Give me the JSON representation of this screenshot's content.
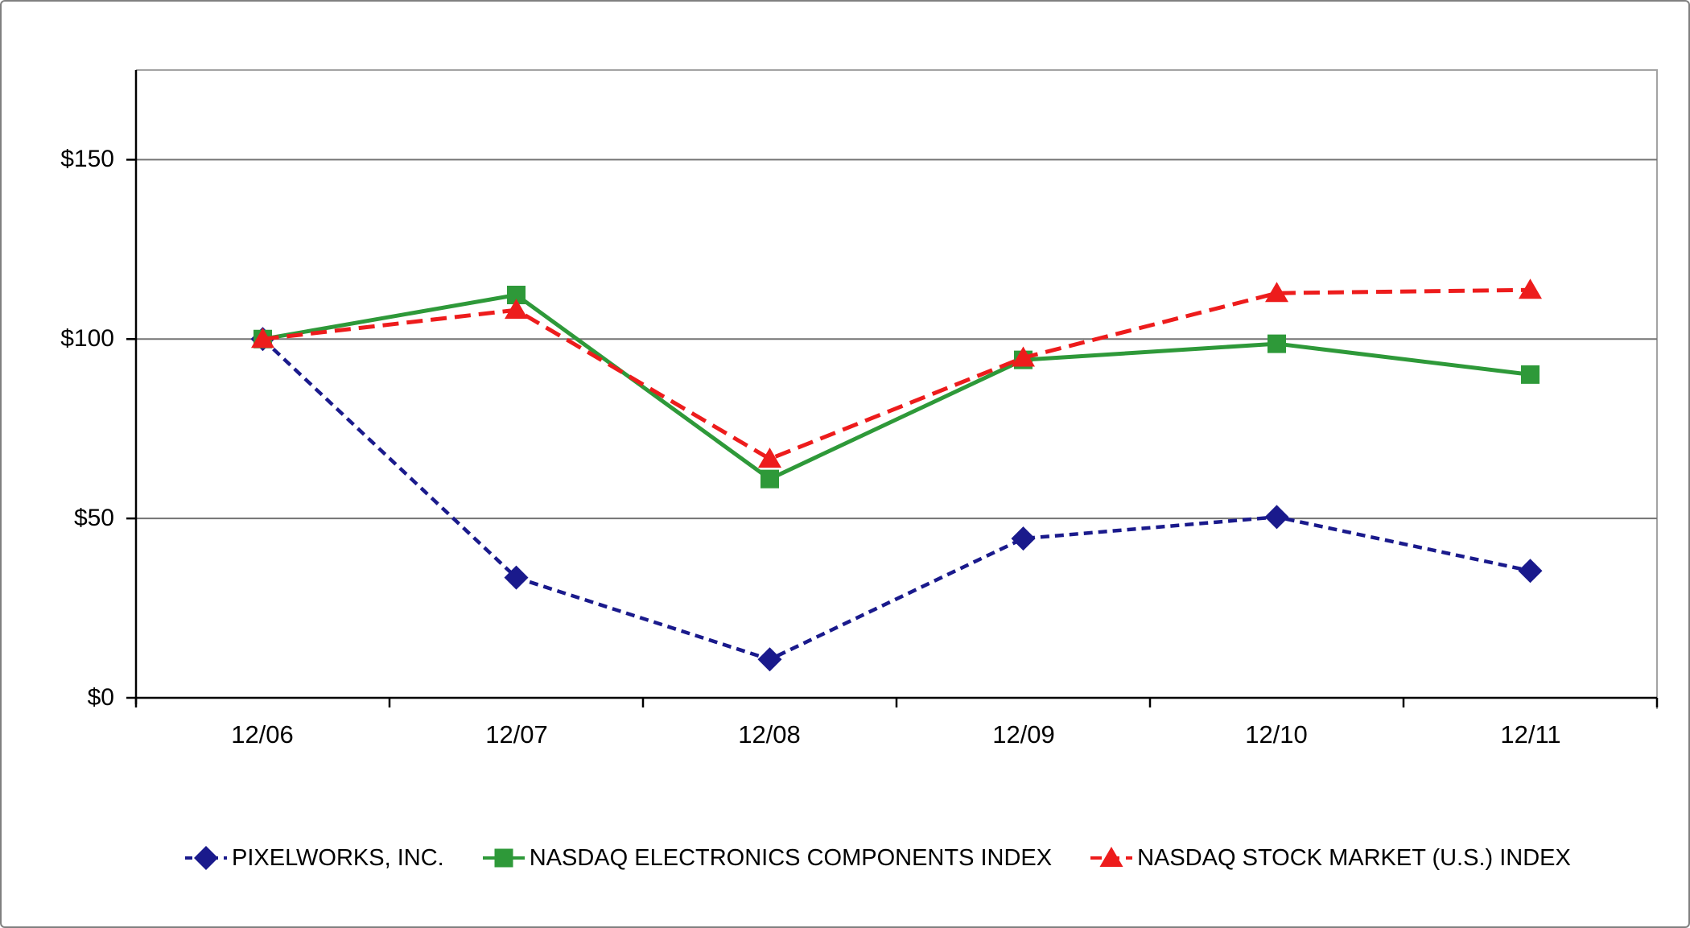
{
  "figure": {
    "background_color": "#FFFFFF",
    "border_color": "#808080"
  },
  "chart_data": {
    "type": "line",
    "title": "",
    "categories": [
      "12/06",
      "12/07",
      "12/08",
      "12/09",
      "12/10",
      "12/11"
    ],
    "y_ticks": [
      {
        "value": 0,
        "label": "$0"
      },
      {
        "value": 50,
        "label": "$50"
      },
      {
        "value": 100,
        "label": "$100"
      },
      {
        "value": 150,
        "label": "$150"
      }
    ],
    "ylim": [
      0,
      175
    ],
    "grid": "horizontal-major",
    "legend_position": "bottom",
    "axis_color": "#000000",
    "gridline_color": "#737373",
    "plot_frame_color": "#A3A3A3",
    "series": [
      {
        "name": "PIXELWORKS, INC.",
        "color": "#1A1A8C",
        "marker": "diamond",
        "line_style": "dash-short",
        "values": [
          100.0,
          33.5,
          10.7,
          44.4,
          50.4,
          35.4
        ]
      },
      {
        "name": "NASDAQ ELECTRONICS COMPONENTS INDEX",
        "color": "#2E9939",
        "marker": "square",
        "line_style": "solid",
        "values": [
          100.0,
          112.3,
          61.0,
          94.2,
          98.7,
          90.1
        ]
      },
      {
        "name": "NASDAQ STOCK MARKET (U.S.) INDEX",
        "color": "#ED1C1C",
        "marker": "triangle",
        "line_style": "dash-long",
        "values": [
          100.0,
          108.1,
          66.6,
          94.8,
          112.8,
          113.7
        ]
      }
    ]
  }
}
